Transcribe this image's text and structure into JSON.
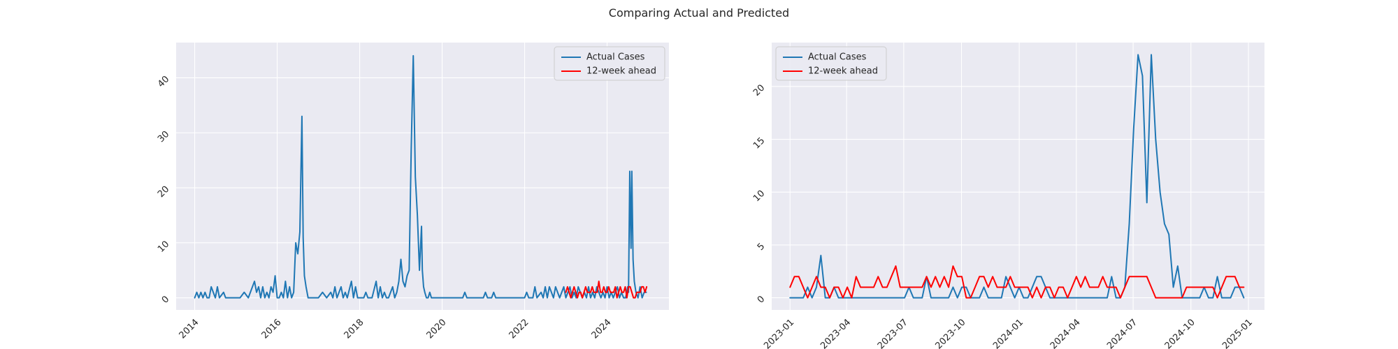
{
  "figure": {
    "title": "Comparing Actual and Predicted"
  },
  "colors": {
    "actual": "#1f77b4",
    "predicted": "#ff0000",
    "panel_bg": "#eaeaf2",
    "grid": "#ffffff",
    "text": "#262626"
  },
  "chart_data": [
    {
      "type": "line",
      "title": "",
      "xlabel": "",
      "ylabel": "",
      "x_kind": "year",
      "xlim": [
        2013.55,
        2025.5
      ],
      "ylim": [
        -2.2,
        46.4
      ],
      "xticks": [
        2014,
        2016,
        2018,
        2020,
        2022,
        2024
      ],
      "xtick_labels": [
        "2014",
        "2016",
        "2018",
        "2020",
        "2022",
        "2024"
      ],
      "yticks": [
        0,
        10,
        20,
        30,
        40
      ],
      "ytick_labels": [
        "0",
        "10",
        "20",
        "30",
        "40"
      ],
      "grid": true,
      "legend_position": "top-right",
      "series": [
        {
          "name": "Actual Cases",
          "color": "#1f77b4",
          "x": [
            2014.0,
            2014.05,
            2014.1,
            2014.15,
            2014.2,
            2014.25,
            2014.3,
            2014.35,
            2014.4,
            2014.45,
            2014.5,
            2014.55,
            2014.6,
            2014.7,
            2014.75,
            2014.8,
            2014.85,
            2014.9,
            2014.95,
            2015.0,
            2015.1,
            2015.2,
            2015.3,
            2015.35,
            2015.4,
            2015.45,
            2015.5,
            2015.55,
            2015.6,
            2015.65,
            2015.7,
            2015.75,
            2015.8,
            2015.85,
            2015.9,
            2015.95,
            2016.0,
            2016.05,
            2016.1,
            2016.15,
            2016.2,
            2016.25,
            2016.3,
            2016.35,
            2016.4,
            2016.45,
            2016.5,
            2016.55,
            2016.6,
            2016.63,
            2016.66,
            2016.7,
            2016.75,
            2016.8,
            2016.85,
            2016.9,
            2017.0,
            2017.1,
            2017.2,
            2017.3,
            2017.35,
            2017.4,
            2017.45,
            2017.5,
            2017.55,
            2017.6,
            2017.65,
            2017.7,
            2017.8,
            2017.85,
            2017.9,
            2017.95,
            2018.0,
            2018.1,
            2018.15,
            2018.2,
            2018.3,
            2018.4,
            2018.45,
            2018.5,
            2018.55,
            2018.6,
            2018.65,
            2018.7,
            2018.8,
            2018.85,
            2018.9,
            2018.95,
            2019.0,
            2019.05,
            2019.1,
            2019.15,
            2019.2,
            2019.25,
            2019.3,
            2019.35,
            2019.4,
            2019.45,
            2019.5,
            2019.52,
            2019.55,
            2019.58,
            2019.62,
            2019.66,
            2019.7,
            2019.74,
            2019.8,
            2019.85,
            2019.9,
            2019.95,
            2020.0,
            2020.05,
            2020.5,
            2020.55,
            2020.6,
            2021.0,
            2021.05,
            2021.1,
            2021.2,
            2021.25,
            2021.3,
            2021.5,
            2022.0,
            2022.05,
            2022.1,
            2022.2,
            2022.25,
            2022.3,
            2022.4,
            2022.45,
            2022.5,
            2022.55,
            2022.6,
            2022.65,
            2022.7,
            2022.75,
            2022.8,
            2022.85,
            2022.9,
            2022.95,
            2023.0,
            2023.05,
            2023.1,
            2023.15,
            2023.2,
            2023.25,
            2023.3,
            2023.35,
            2023.4,
            2023.45,
            2023.5,
            2023.55,
            2023.6,
            2023.65,
            2023.7,
            2023.75,
            2023.8,
            2023.85,
            2023.9,
            2023.95,
            2024.0,
            2024.05,
            2024.1,
            2024.15,
            2024.2,
            2024.25,
            2024.3,
            2024.35,
            2024.4,
            2024.45,
            2024.5,
            2024.52,
            2024.55,
            2024.58,
            2024.6,
            2024.63,
            2024.66,
            2024.7,
            2024.75,
            2024.8,
            2024.85,
            2024.9,
            2024.95
          ],
          "y": [
            0,
            1,
            0,
            1,
            0,
            1,
            0,
            0,
            2,
            1,
            0,
            2,
            0,
            1,
            0,
            0,
            0,
            0,
            0,
            0,
            0,
            1,
            0,
            1,
            2,
            3,
            1,
            2,
            0,
            2,
            0,
            1,
            0,
            2,
            1,
            4,
            0,
            0,
            1,
            0,
            3,
            0,
            2,
            0,
            1,
            10,
            8,
            12,
            33,
            11,
            4,
            2,
            0,
            0,
            0,
            0,
            0,
            1,
            0,
            1,
            0,
            2,
            0,
            1,
            2,
            0,
            1,
            0,
            3,
            0,
            2,
            0,
            0,
            0,
            1,
            0,
            0,
            3,
            0,
            2,
            0,
            1,
            0,
            0,
            2,
            0,
            1,
            3,
            7,
            3,
            2,
            4,
            5,
            27,
            44,
            22,
            15,
            5,
            13,
            5,
            2,
            1,
            0,
            0,
            1,
            0,
            0,
            0,
            0,
            0,
            0,
            0,
            0,
            1,
            0,
            0,
            1,
            0,
            0,
            1,
            0,
            0,
            0,
            1,
            0,
            0,
            2,
            0,
            1,
            0,
            2,
            0,
            2,
            1,
            0,
            2,
            1,
            0,
            1,
            2,
            0,
            1,
            2,
            0,
            1,
            0,
            2,
            1,
            0,
            1,
            0,
            2,
            0,
            1,
            0,
            2,
            1,
            0,
            1,
            0,
            2,
            0,
            1,
            0,
            1,
            2,
            0,
            1,
            0,
            0,
            2,
            1,
            23,
            9,
            23,
            7,
            3,
            1,
            0,
            2,
            0,
            1,
            1
          ]
        },
        {
          "name": "12-week ahead",
          "color": "#ff0000",
          "x": [
            2023.0,
            2023.04,
            2023.08,
            2023.12,
            2023.16,
            2023.2,
            2023.24,
            2023.28,
            2023.32,
            2023.36,
            2023.4,
            2023.44,
            2023.48,
            2023.52,
            2023.56,
            2023.6,
            2023.64,
            2023.68,
            2023.72,
            2023.76,
            2023.8,
            2023.84,
            2023.88,
            2023.92,
            2023.96,
            2024.0,
            2024.04,
            2024.08,
            2024.12,
            2024.16,
            2024.2,
            2024.24,
            2024.28,
            2024.32,
            2024.36,
            2024.4,
            2024.44,
            2024.48,
            2024.52,
            2024.56,
            2024.6,
            2024.64,
            2024.68,
            2024.72,
            2024.76,
            2024.8,
            2024.84,
            2024.88,
            2024.92,
            2024.96
          ],
          "y": [
            1,
            2,
            1,
            0,
            1,
            2,
            1,
            0,
            1,
            1,
            0,
            1,
            2,
            1,
            1,
            1,
            2,
            1,
            1,
            1,
            3,
            1,
            1,
            2,
            1,
            1,
            2,
            1,
            1,
            1,
            2,
            0,
            1,
            2,
            1,
            1,
            2,
            0,
            2,
            2,
            1,
            0,
            0,
            1,
            1,
            1,
            2,
            2,
            1,
            2
          ]
        }
      ]
    },
    {
      "type": "line",
      "title": "",
      "xlabel": "",
      "ylabel": "",
      "x_kind": "date",
      "xlim": [
        2022.92,
        2025.07
      ],
      "ylim": [
        -1.15,
        24.15
      ],
      "xticks": [
        2023.0,
        2023.247,
        2023.496,
        2023.748,
        2024.0,
        2024.249,
        2024.497,
        2024.749,
        2025.0
      ],
      "xtick_labels": [
        "2023-01",
        "2023-04",
        "2023-07",
        "2023-10",
        "2024-01",
        "2024-04",
        "2024-07",
        "2024-10",
        "2025-01"
      ],
      "yticks": [
        0,
        5,
        10,
        15,
        20
      ],
      "ytick_labels": [
        "0",
        "5",
        "10",
        "15",
        "20"
      ],
      "grid": true,
      "legend_position": "top-left",
      "series": [
        {
          "name": "Actual Cases",
          "color": "#1f77b4",
          "x": [
            2023.0,
            2023.0192,
            2023.0384,
            2023.0577,
            2023.0769,
            2023.0961,
            2023.1153,
            2023.1345,
            2023.1538,
            2023.173,
            2023.1922,
            2023.2114,
            2023.2307,
            2023.2499,
            2023.2691,
            2023.2883,
            2023.3075,
            2023.3268,
            2023.346,
            2023.3652,
            2023.3844,
            2023.4036,
            2023.4229,
            2023.4421,
            2023.4613,
            2023.4805,
            2023.4997,
            2023.519,
            2023.5382,
            2023.5574,
            2023.5766,
            2023.5958,
            2023.6151,
            2023.6343,
            2023.6535,
            2023.6727,
            2023.6919,
            2023.7112,
            2023.7304,
            2023.7496,
            2023.7688,
            2023.788,
            2023.8073,
            2023.8265,
            2023.8457,
            2023.8649,
            2023.8841,
            2023.9034,
            2023.9226,
            2023.9418,
            2023.961,
            2023.9802,
            2023.9995,
            2024.0187,
            2024.0379,
            2024.0571,
            2024.0763,
            2024.0956,
            2024.1148,
            2024.134,
            2024.1532,
            2024.1724,
            2024.1917,
            2024.2109,
            2024.2301,
            2024.2493,
            2024.2685,
            2024.2878,
            2024.307,
            2024.3262,
            2024.3454,
            2024.3646,
            2024.3839,
            2024.4031,
            2024.4223,
            2024.4415,
            2024.4607,
            2024.48,
            2024.4992,
            2024.5184,
            2024.5376,
            2024.5568,
            2024.5761,
            2024.5953,
            2024.6145,
            2024.6337,
            2024.6529,
            2024.6722,
            2024.6914,
            2024.7106,
            2024.7298,
            2024.749,
            2024.7683,
            2024.7875,
            2024.8067,
            2024.8259,
            2024.8451,
            2024.8644,
            2024.8836,
            2024.9028,
            2024.922,
            2024.9412,
            2024.9605,
            2024.9797
          ],
          "y": [
            0,
            0,
            0,
            0,
            1,
            0,
            1,
            4,
            0,
            0,
            1,
            0,
            0,
            0,
            0,
            0,
            0,
            0,
            0,
            0,
            0,
            0,
            0,
            0,
            0,
            0,
            0,
            1,
            0,
            0,
            0,
            2,
            0,
            0,
            0,
            0,
            0,
            1,
            0,
            1,
            1,
            0,
            0,
            0,
            1,
            0,
            0,
            0,
            0,
            2,
            1,
            0,
            1,
            0,
            0,
            1,
            2,
            2,
            1,
            0,
            0,
            0,
            0,
            0,
            0,
            0,
            0,
            0,
            0,
            0,
            0,
            0,
            0,
            2,
            0,
            0,
            1,
            7,
            16,
            23,
            21,
            9,
            23,
            15,
            10,
            7,
            6,
            1,
            3,
            0,
            0,
            0,
            0,
            0,
            1,
            0,
            0,
            2,
            0,
            0,
            0,
            1,
            1,
            0
          ]
        },
        {
          "name": "12-week ahead",
          "color": "#ff0000",
          "x": [
            2023.0,
            2023.0192,
            2023.0384,
            2023.0577,
            2023.0769,
            2023.0961,
            2023.1153,
            2023.1345,
            2023.1538,
            2023.173,
            2023.1922,
            2023.2114,
            2023.2307,
            2023.2499,
            2023.2691,
            2023.2883,
            2023.3075,
            2023.3268,
            2023.346,
            2023.3652,
            2023.3844,
            2023.4036,
            2023.4229,
            2023.4421,
            2023.4613,
            2023.4805,
            2023.4997,
            2023.519,
            2023.5382,
            2023.5574,
            2023.5766,
            2023.5958,
            2023.6151,
            2023.6343,
            2023.6535,
            2023.6727,
            2023.6919,
            2023.7112,
            2023.7304,
            2023.7496,
            2023.7688,
            2023.788,
            2023.8073,
            2023.8265,
            2023.8457,
            2023.8649,
            2023.8841,
            2023.9034,
            2023.9226,
            2023.9418,
            2023.961,
            2023.9802,
            2023.9995,
            2024.0187,
            2024.0379,
            2024.0571,
            2024.0763,
            2024.0956,
            2024.1148,
            2024.134,
            2024.1532,
            2024.1724,
            2024.1917,
            2024.2109,
            2024.2301,
            2024.2493,
            2024.2685,
            2024.2878,
            2024.307,
            2024.3262,
            2024.3454,
            2024.3646,
            2024.3839,
            2024.4031,
            2024.4223,
            2024.4415,
            2024.4607,
            2024.48,
            2024.4992,
            2024.5184,
            2024.5376,
            2024.5568,
            2024.5761,
            2024.5953,
            2024.6145,
            2024.6337,
            2024.6529,
            2024.6722,
            2024.6914,
            2024.7106,
            2024.7298,
            2024.749,
            2024.7683,
            2024.7875,
            2024.8067,
            2024.8259,
            2024.8451,
            2024.8644,
            2024.8836,
            2024.9028,
            2024.922,
            2024.9412,
            2024.9605,
            2024.9797
          ],
          "y": [
            1,
            2,
            2,
            1,
            0,
            1,
            2,
            1,
            1,
            0,
            1,
            1,
            0,
            1,
            0,
            2,
            1,
            1,
            1,
            1,
            2,
            1,
            1,
            2,
            3,
            1,
            1,
            1,
            1,
            1,
            1,
            2,
            1,
            2,
            1,
            2,
            1,
            3,
            2,
            2,
            0,
            0,
            1,
            2,
            2,
            1,
            2,
            1,
            1,
            1,
            2,
            1,
            1,
            1,
            1,
            0,
            1,
            0,
            1,
            1,
            0,
            1,
            1,
            0,
            1,
            2,
            1,
            2,
            1,
            1,
            1,
            2,
            1,
            1,
            1,
            0,
            1,
            2,
            2,
            2,
            2,
            2,
            1,
            0,
            0,
            0,
            0,
            0,
            0,
            0,
            1,
            1,
            1,
            1,
            1,
            1,
            1,
            0,
            1,
            2,
            2,
            2,
            1,
            1
          ]
        }
      ]
    }
  ]
}
